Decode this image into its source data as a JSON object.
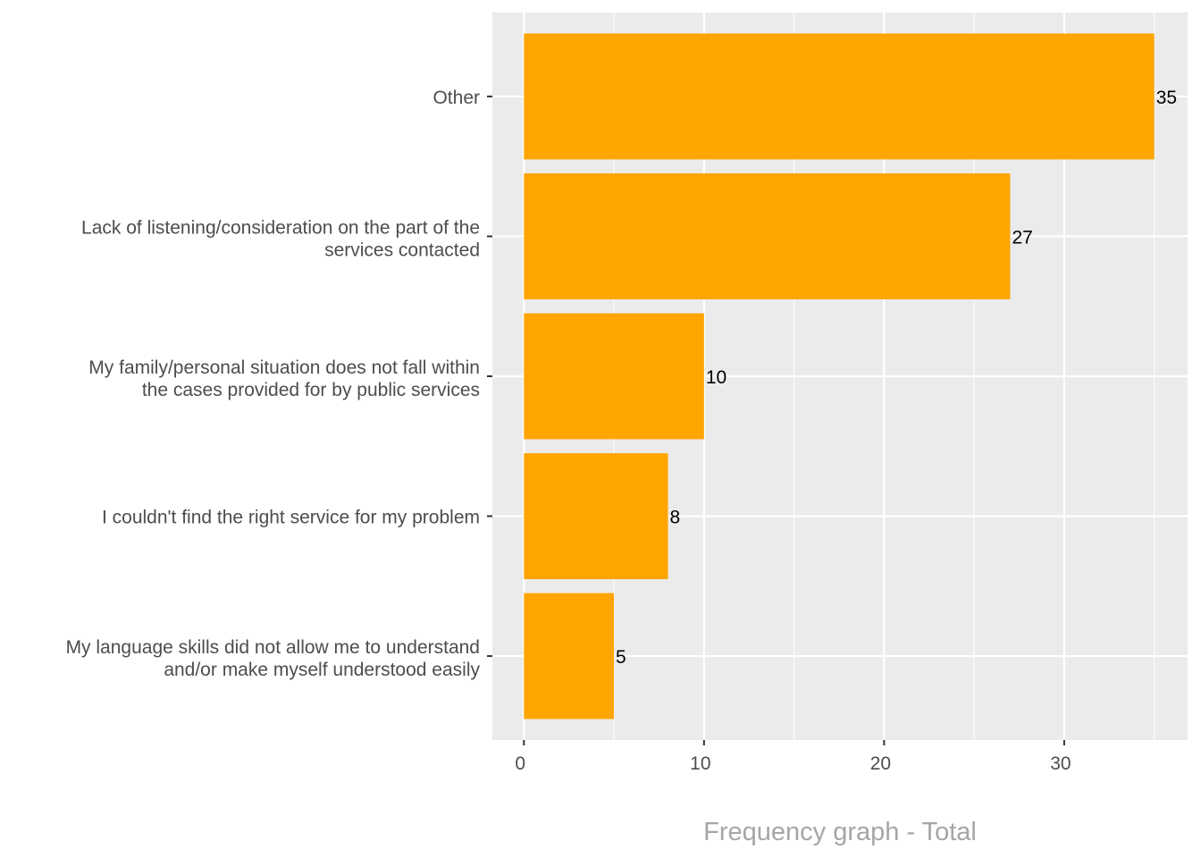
{
  "chart_data": {
    "type": "bar",
    "orientation": "horizontal",
    "categories": [
      [
        "Other"
      ],
      [
        "Lack of listening/consideration on the part of the",
        "services contacted"
      ],
      [
        "My family/personal situation does not fall within",
        "the cases provided for by public services"
      ],
      [
        "I couldn't find the right service for my problem"
      ],
      [
        "My language skills did not allow me to understand",
        "and/or make myself understood easily"
      ]
    ],
    "values": [
      35,
      27,
      10,
      8,
      5
    ],
    "data_labels": [
      "35",
      "27",
      "10",
      "8",
      "5"
    ],
    "title": "",
    "xlabel": "Frequency graph - Total",
    "ylabel": "",
    "xlim": [
      -1.75,
      36.85
    ],
    "xticks": [
      0,
      10,
      20,
      30
    ],
    "xtick_labels": [
      "0",
      "10",
      "20",
      "30"
    ],
    "grid": true,
    "legend": "none",
    "colors": {
      "bar": "#FFA500",
      "panel": "#EBEBEB",
      "grid": "#FFFFFF"
    }
  }
}
